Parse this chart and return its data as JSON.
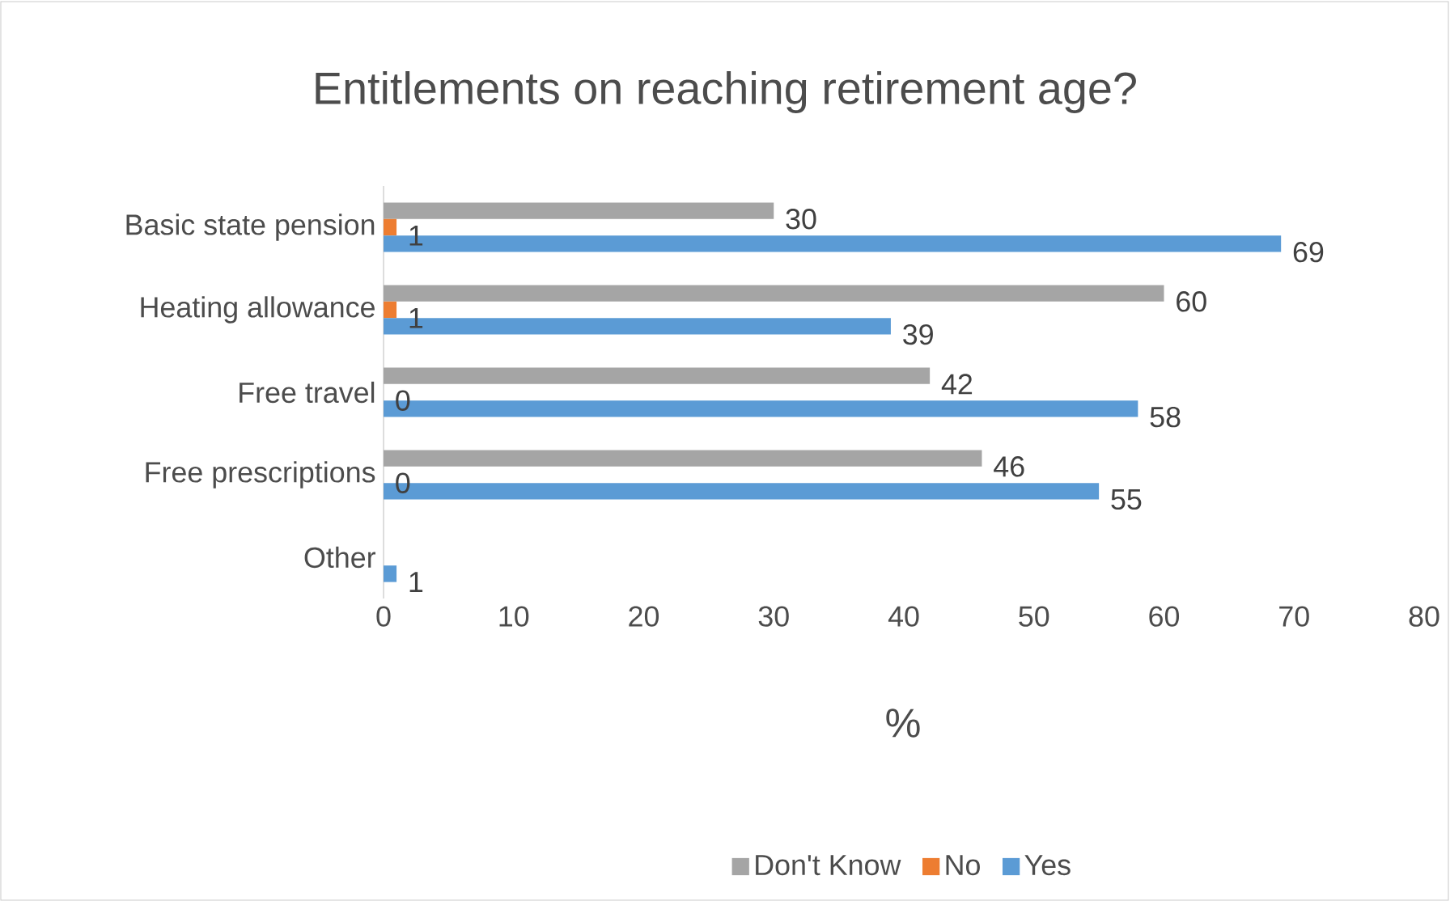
{
  "chart_data": {
    "type": "bar",
    "orientation": "horizontal",
    "title": "Entitlements on reaching retirement age?",
    "xlabel": "%",
    "categories": [
      "Basic state pension",
      "Heating allowance",
      "Free travel",
      "Free prescriptions",
      "Other"
    ],
    "series": [
      {
        "name": "Don't Know",
        "color": "#a5a5a5",
        "values": [
          30,
          60,
          42,
          46,
          null
        ]
      },
      {
        "name": "No",
        "color": "#ed7d31",
        "values": [
          1,
          1,
          0,
          0,
          null
        ]
      },
      {
        "name": "Yes",
        "color": "#5b9bd5",
        "values": [
          69,
          39,
          58,
          55,
          1
        ]
      }
    ],
    "xlim": [
      0,
      80
    ],
    "xticks": [
      0,
      10,
      20,
      30,
      40,
      50,
      60,
      70,
      80
    ],
    "data_labels": true,
    "legend": "bottom"
  }
}
